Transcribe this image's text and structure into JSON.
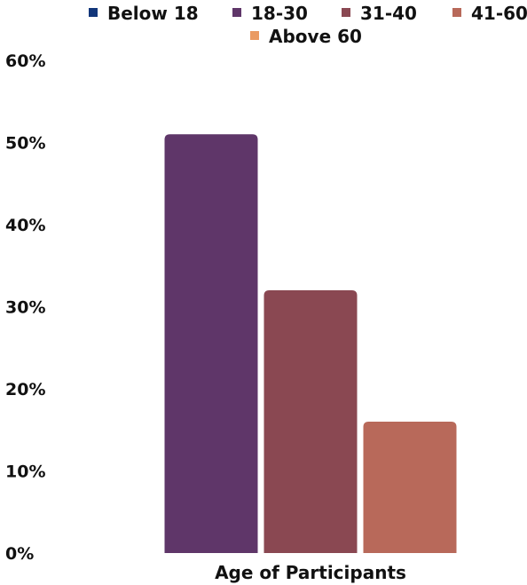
{
  "chart_data": {
    "type": "bar",
    "title": "",
    "xlabel": "Age of Participants",
    "ylabel": "",
    "categories": [
      "Age of Participants"
    ],
    "series": [
      {
        "name": "Below 18",
        "color": "#12367a",
        "values": [
          0
        ]
      },
      {
        "name": "18-30",
        "color": "#5f3669",
        "values": [
          51
        ]
      },
      {
        "name": "31-40",
        "color": "#8a4852",
        "values": [
          32
        ]
      },
      {
        "name": "41-60",
        "color": "#b8695a",
        "values": [
          16
        ]
      },
      {
        "name": "Above 60",
        "color": "#ea9a62",
        "values": [
          0
        ]
      }
    ],
    "yticks": [
      "0%",
      "10%",
      "20%",
      "30%",
      "40%",
      "50%",
      "60%"
    ],
    "ylim": [
      0,
      60
    ],
    "grid": false,
    "legend": "top"
  }
}
